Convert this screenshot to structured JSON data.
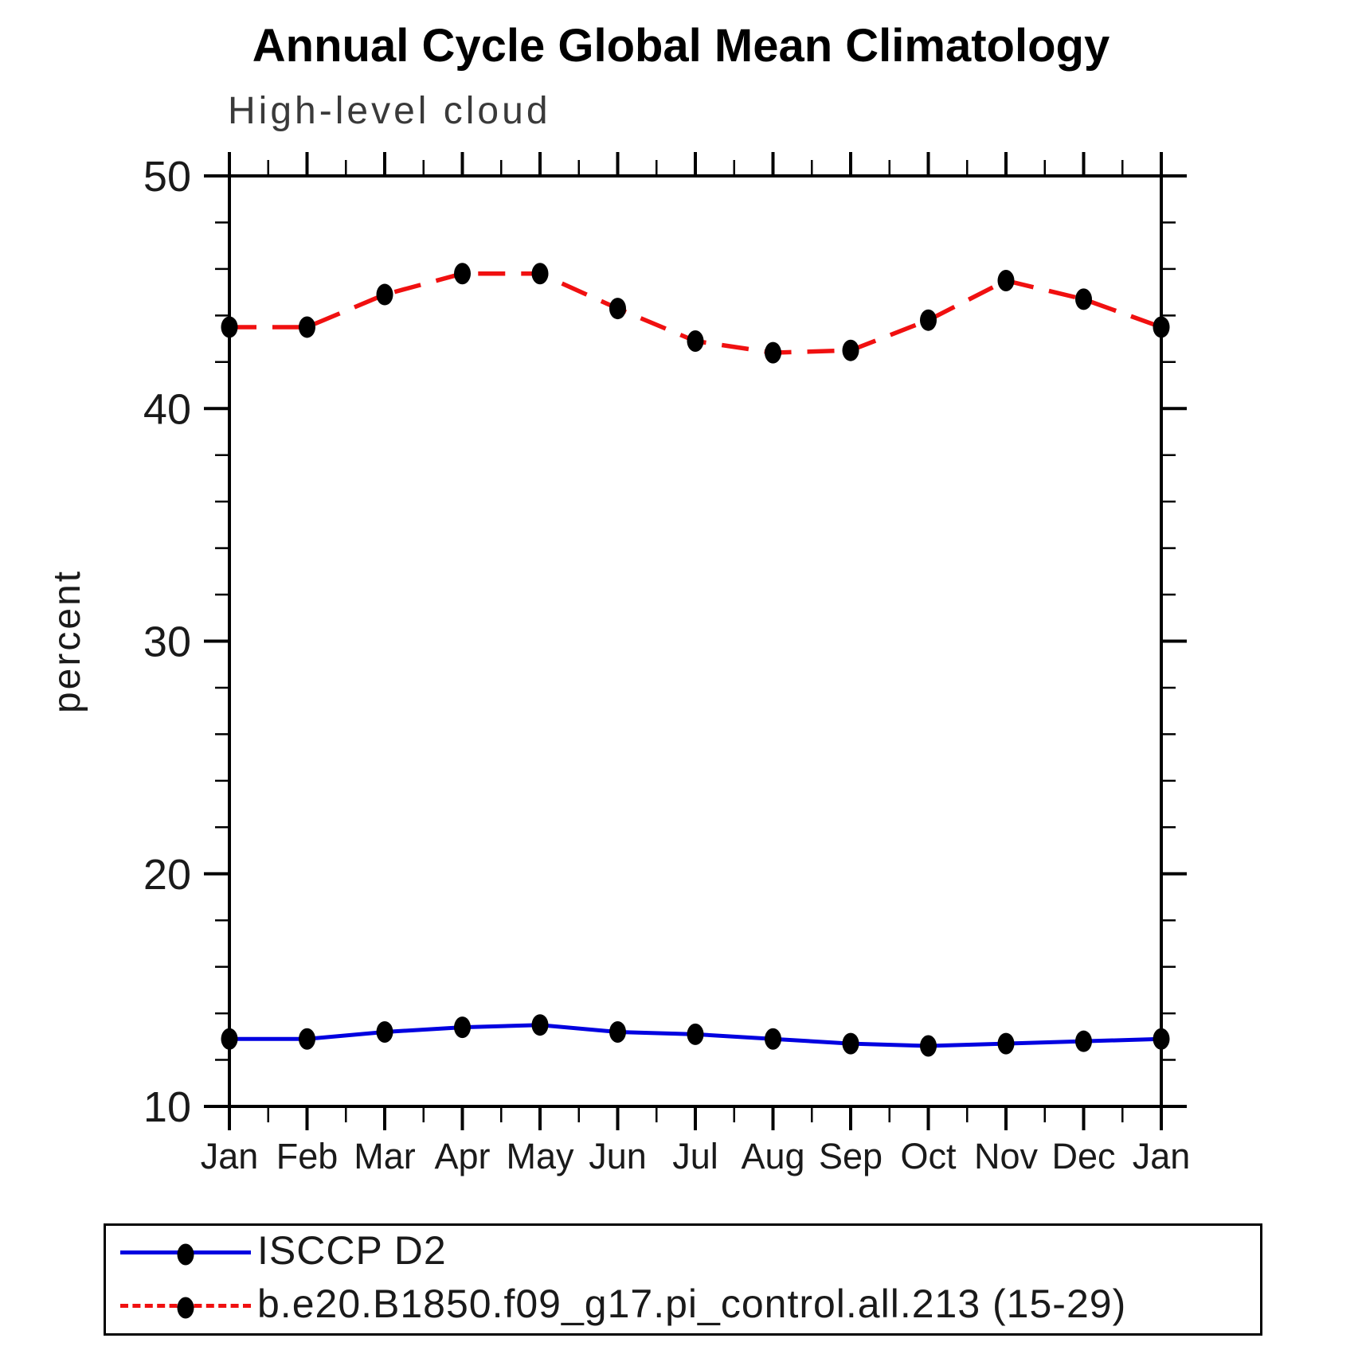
{
  "chart_data": {
    "type": "line",
    "title": "Annual Cycle Global Mean Climatology",
    "subtitle": "High-level cloud",
    "xlabel": "",
    "ylabel": "percent",
    "categories": [
      "Jan",
      "Feb",
      "Mar",
      "Apr",
      "May",
      "Jun",
      "Jul",
      "Aug",
      "Sep",
      "Oct",
      "Nov",
      "Dec",
      "Jan"
    ],
    "ylim": [
      10,
      50
    ],
    "ytick_major": [
      10,
      20,
      30,
      40,
      50
    ],
    "ytick_minor_step": 2,
    "xtick_minor": "half-month",
    "grid": false,
    "legend_position": "bottom-box",
    "background_color": "#ffffff",
    "axis_color": "#000000",
    "marker_color": "#000000",
    "series": [
      {
        "name": "ISCCP D2",
        "color": "#0000e0",
        "line_style": "solid",
        "marker": "filled-circle",
        "values": [
          12.9,
          12.9,
          13.2,
          13.4,
          13.5,
          13.2,
          13.1,
          12.9,
          12.7,
          12.6,
          12.7,
          12.8,
          12.9
        ]
      },
      {
        "name": "b.e20.B1850.f09_g17.pi_control.all.213 (15-29)",
        "color": "#f01010",
        "line_style": "dashed",
        "marker": "filled-circle",
        "values": [
          43.5,
          43.5,
          44.9,
          45.8,
          45.8,
          44.3,
          42.9,
          42.4,
          42.5,
          43.8,
          45.5,
          44.7,
          43.5
        ]
      }
    ]
  }
}
